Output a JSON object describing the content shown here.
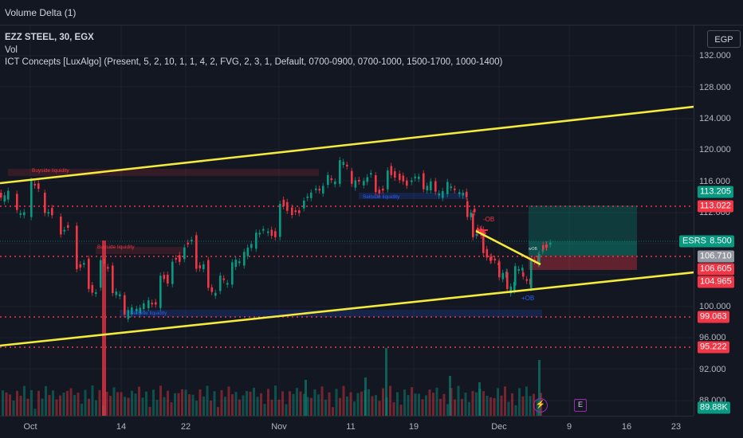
{
  "header": {
    "title": "Volume Delta (1)"
  },
  "legend": {
    "symbol": "EZZ STEEL, 30, EGX",
    "vol": "Vol",
    "indicator": "ICT Concepts [LuxAlgo] (Present, 5, 2, 10, 1, 1, 4, 2, FVG, 2, 3, 1, Default, 0700-0900, 0700-1000, 1500-1700, 1000-1400)"
  },
  "price_axis": {
    "currency": "EGP",
    "ticks": [
      "132.000",
      "128.000",
      "124.000",
      "120.000",
      "116.000",
      "112.000",
      "100.000",
      "96.000",
      "92.000",
      "88.000"
    ],
    "labels": [
      {
        "text": "113.205",
        "color": "#089981"
      },
      {
        "text": "113.022",
        "color": "#f23645"
      },
      {
        "text": "108.500",
        "color": "#089981"
      },
      {
        "text": "106.710",
        "color": "#9598a1"
      },
      {
        "text": "106.605",
        "color": "#f23645"
      },
      {
        "text": "104.965",
        "color": "#f23645"
      },
      {
        "text": "99.063",
        "color": "#f23645"
      },
      {
        "text": "95.222",
        "color": "#f23645"
      },
      {
        "text": "89.88K",
        "color": "#089981"
      }
    ],
    "esrs": "ESRS"
  },
  "time_axis": {
    "labels": [
      "Oct",
      "14",
      "22",
      "Nov",
      "11",
      "19",
      "Dec",
      "9",
      "16",
      "23"
    ]
  },
  "annotations": {
    "buyside_1": "Buyside liquidity",
    "buyside_2": "Buyside liquidity",
    "sellside_1": "Sellside liquidity",
    "sellside_2": "Sellside liquidity",
    "ob_minus": "-OB",
    "ob_plus": "+OB",
    "wick": "wOB"
  },
  "icons": {
    "event1": "lightning-icon",
    "event2": "earnings-icon"
  },
  "colors": {
    "bg": "#131722",
    "up": "#089981",
    "down": "#f23645",
    "trend": "#f5eb3b"
  }
}
